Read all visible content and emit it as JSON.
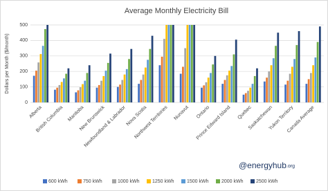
{
  "chart_data": {
    "type": "bar",
    "title": "Average Monthly Electricity Bill",
    "y_label": "Dollars per Month ($/month)",
    "watermark": "@energyhub",
    "watermark_suffix": ".org",
    "categories": [
      "Alberta",
      "British Columbia",
      "Manitoba",
      "New Brunswick",
      "Newfoundland & Labrador",
      "Nova Scotia",
      "Northwest Territories",
      "Nunavut",
      "Ontario",
      "Prince Edward Island",
      "Quebec",
      "Saskatchewan",
      "Yukon Territory",
      "Canada Average"
    ],
    "series": [
      {
        "name": "600 kWh",
        "color": "#4472c4",
        "values": [
          172,
          82,
          65,
          95,
          100,
          120,
          240,
          185,
          95,
          120,
          50,
          135,
          115,
          120
        ]
      },
      {
        "name": "750 kWh",
        "color": "#ed7d31",
        "values": [
          205,
          95,
          78,
          112,
          115,
          145,
          295,
          230,
          110,
          145,
          60,
          160,
          140,
          150
        ]
      },
      {
        "name": "1000 kWh",
        "color": "#a5a5a5",
        "values": [
          258,
          112,
          98,
          140,
          145,
          180,
          410,
          350,
          130,
          175,
          75,
          200,
          185,
          190
        ]
      },
      {
        "name": "1250 kWh",
        "color": "#ffc000",
        "values": [
          312,
          132,
          118,
          170,
          180,
          225,
          500,
          500,
          160,
          205,
          95,
          240,
          230,
          240
        ]
      },
      {
        "name": "1500 kWh",
        "color": "#5b9bd5",
        "values": [
          365,
          155,
          140,
          205,
          215,
          275,
          500,
          500,
          190,
          235,
          120,
          285,
          280,
          290
        ]
      },
      {
        "name": "2000 kWh",
        "color": "#70ad47",
        "values": [
          473,
          185,
          190,
          255,
          280,
          345,
          500,
          500,
          245,
          310,
          170,
          365,
          370,
          390
        ]
      },
      {
        "name": "2500 kWh",
        "color": "#264478",
        "values": [
          500,
          220,
          240,
          315,
          345,
          430,
          500,
          500,
          300,
          405,
          220,
          450,
          460,
          490
        ]
      }
    ],
    "ylim": [
      0,
      500
    ],
    "yticks": [
      0,
      100,
      200,
      300,
      400,
      500
    ],
    "grid": true
  }
}
